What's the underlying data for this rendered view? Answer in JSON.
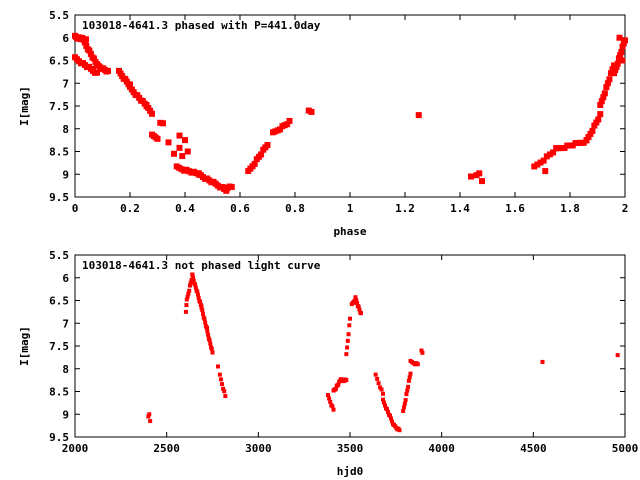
{
  "chart_data": [
    {
      "type": "scatter",
      "title": "103018-4641.3 phased with P=441.0day",
      "xlabel": "phase",
      "ylabel": "I[mag]",
      "xlim": [
        0,
        2
      ],
      "ylim": [
        9.5,
        5.5
      ],
      "y_inverted": true,
      "xticks": [
        "0",
        "0.2",
        "0.4",
        "0.6",
        "0.8",
        "1",
        "1.2",
        "1.4",
        "1.6",
        "1.8",
        "2"
      ],
      "yticks": [
        "5.5",
        "6",
        "6.5",
        "7",
        "7.5",
        "8",
        "8.5",
        "9",
        "9.5"
      ],
      "marker_color": "#ff0000",
      "marker_size": 3,
      "segments": [
        {
          "x0": 0.0,
          "y0": 5.98,
          "x1": 0.04,
          "y1": 6.05,
          "n": 12
        },
        {
          "x0": 0.03,
          "y0": 6.05,
          "x1": 0.08,
          "y1": 6.6,
          "n": 10
        },
        {
          "x0": 0.0,
          "y0": 6.45,
          "x1": 0.08,
          "y1": 6.78,
          "n": 12
        },
        {
          "x0": 0.08,
          "y0": 6.6,
          "x1": 0.12,
          "y1": 6.75,
          "n": 8
        },
        {
          "x0": 0.16,
          "y0": 6.75,
          "x1": 0.2,
          "y1": 7.05,
          "n": 8
        },
        {
          "x0": 0.2,
          "y0": 7.1,
          "x1": 0.26,
          "y1": 7.5,
          "n": 10
        },
        {
          "x0": 0.26,
          "y0": 7.5,
          "x1": 0.28,
          "y1": 7.65,
          "n": 4
        },
        {
          "x0": 0.28,
          "y0": 8.15,
          "x1": 0.3,
          "y1": 8.2,
          "n": 4
        },
        {
          "x0": 0.37,
          "y0": 8.85,
          "x1": 0.45,
          "y1": 9.0,
          "n": 10
        },
        {
          "x0": 0.45,
          "y0": 9.0,
          "x1": 0.55,
          "y1": 9.35,
          "n": 14
        },
        {
          "x0": 0.53,
          "y0": 9.3,
          "x1": 0.57,
          "y1": 9.28,
          "n": 6
        },
        {
          "x0": 0.63,
          "y0": 8.95,
          "x1": 0.7,
          "y1": 8.35,
          "n": 10
        },
        {
          "x0": 0.72,
          "y0": 8.1,
          "x1": 0.78,
          "y1": 7.85,
          "n": 8
        },
        {
          "x0": 1.67,
          "y0": 8.85,
          "x1": 1.75,
          "y1": 8.45,
          "n": 8
        },
        {
          "x0": 1.75,
          "y0": 8.45,
          "x1": 1.86,
          "y1": 8.27,
          "n": 12
        },
        {
          "x0": 1.86,
          "y0": 8.27,
          "x1": 1.91,
          "y1": 7.7,
          "n": 8
        },
        {
          "x0": 1.91,
          "y0": 7.5,
          "x1": 1.96,
          "y1": 6.6,
          "n": 10
        },
        {
          "x0": 1.96,
          "y0": 6.8,
          "x1": 2.0,
          "y1": 6.05,
          "n": 10
        }
      ],
      "points": [
        {
          "x": 0.31,
          "y": 7.87
        },
        {
          "x": 0.32,
          "y": 7.88
        },
        {
          "x": 0.34,
          "y": 8.3
        },
        {
          "x": 0.36,
          "y": 8.55
        },
        {
          "x": 0.38,
          "y": 8.15
        },
        {
          "x": 0.38,
          "y": 8.42
        },
        {
          "x": 0.39,
          "y": 8.6
        },
        {
          "x": 0.4,
          "y": 8.25
        },
        {
          "x": 0.41,
          "y": 8.5
        },
        {
          "x": 0.85,
          "y": 7.6
        },
        {
          "x": 0.86,
          "y": 7.63
        },
        {
          "x": 1.25,
          "y": 7.7
        },
        {
          "x": 1.44,
          "y": 9.05
        },
        {
          "x": 1.46,
          "y": 9.02
        },
        {
          "x": 1.47,
          "y": 8.98
        },
        {
          "x": 1.48,
          "y": 9.15
        },
        {
          "x": 1.71,
          "y": 8.93
        },
        {
          "x": 1.99,
          "y": 6.5
        },
        {
          "x": 1.98,
          "y": 6.0
        }
      ]
    },
    {
      "type": "scatter",
      "title": "103018-4641.3 not phased light curve",
      "xlabel": "hjd0",
      "ylabel": "I[mag]",
      "xlim": [
        2000,
        5000
      ],
      "ylim": [
        9.5,
        5.5
      ],
      "y_inverted": true,
      "xticks": [
        "2000",
        "2500",
        "3000",
        "3500",
        "4000",
        "4500",
        "5000"
      ],
      "yticks": [
        "5.5",
        "6",
        "6.5",
        "7",
        "7.5",
        "8",
        "8.5",
        "9",
        "9.5"
      ],
      "marker_color": "#ff0000",
      "marker_size": 2,
      "segments": [
        {
          "x0": 2610,
          "y0": 6.5,
          "x1": 2640,
          "y1": 5.95,
          "n": 8
        },
        {
          "x0": 2640,
          "y0": 5.95,
          "x1": 2690,
          "y1": 6.65,
          "n": 14
        },
        {
          "x0": 2690,
          "y0": 6.65,
          "x1": 2750,
          "y1": 7.65,
          "n": 16
        },
        {
          "x0": 2790,
          "y0": 8.15,
          "x1": 2820,
          "y1": 8.6,
          "n": 6
        },
        {
          "x0": 3380,
          "y0": 8.6,
          "x1": 3410,
          "y1": 8.9,
          "n": 6
        },
        {
          "x0": 3410,
          "y0": 8.5,
          "x1": 3450,
          "y1": 8.25,
          "n": 10
        },
        {
          "x0": 3450,
          "y0": 8.25,
          "x1": 3480,
          "y1": 8.25,
          "n": 6
        },
        {
          "x0": 3480,
          "y0": 7.7,
          "x1": 3500,
          "y1": 6.9,
          "n": 6
        },
        {
          "x0": 3510,
          "y0": 6.6,
          "x1": 3530,
          "y1": 6.45,
          "n": 5
        },
        {
          "x0": 3530,
          "y0": 6.45,
          "x1": 3560,
          "y1": 6.8,
          "n": 8
        },
        {
          "x0": 3640,
          "y0": 8.15,
          "x1": 3680,
          "y1": 8.55,
          "n": 6
        },
        {
          "x0": 3680,
          "y0": 8.7,
          "x1": 3740,
          "y1": 9.25,
          "n": 12
        },
        {
          "x0": 3740,
          "y0": 9.25,
          "x1": 3770,
          "y1": 9.35,
          "n": 6
        },
        {
          "x0": 3790,
          "y0": 8.95,
          "x1": 3830,
          "y1": 8.1,
          "n": 10
        },
        {
          "x0": 3830,
          "y0": 7.85,
          "x1": 3870,
          "y1": 7.9,
          "n": 6
        }
      ],
      "points": [
        {
          "x": 2400,
          "y": 9.05
        },
        {
          "x": 2405,
          "y": 9.0
        },
        {
          "x": 2410,
          "y": 9.15
        },
        {
          "x": 2605,
          "y": 6.75
        },
        {
          "x": 2608,
          "y": 6.6
        },
        {
          "x": 2720,
          "y": 7.1
        },
        {
          "x": 2780,
          "y": 7.95
        },
        {
          "x": 3890,
          "y": 7.6
        },
        {
          "x": 3895,
          "y": 7.65
        },
        {
          "x": 4550,
          "y": 7.85
        },
        {
          "x": 4960,
          "y": 7.7
        }
      ]
    }
  ]
}
